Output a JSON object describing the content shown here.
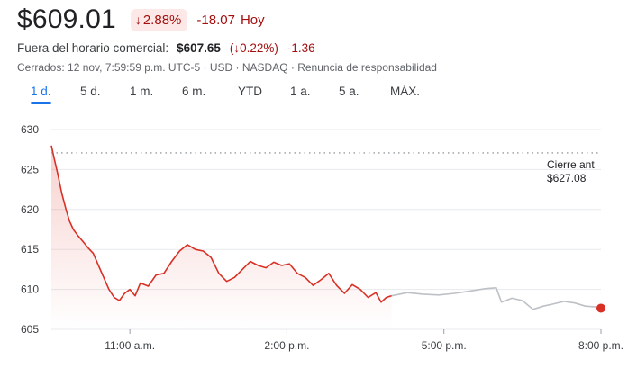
{
  "quote": {
    "price": "$609.01",
    "change_pct": "2.88%",
    "change_abs": "-18.07",
    "change_period": "Hoy",
    "down_arrow": "↓"
  },
  "after_hours": {
    "label": "Fuera del horario comercial:",
    "price": "$607.65",
    "pct": "(↓0.22%)",
    "abs": "-1.36"
  },
  "meta": "Cerrados: 12 nov, 7:59:59 p.m. UTC-5 · USD · NASDAQ · Renuncia de responsabilidad",
  "tabs": [
    {
      "label": "1 d.",
      "active": true
    },
    {
      "label": "5 d."
    },
    {
      "label": "1 m."
    },
    {
      "label": "6 m."
    },
    {
      "label": "YTD"
    },
    {
      "label": "1 a."
    },
    {
      "label": "5 a."
    },
    {
      "label": "MÁX."
    }
  ],
  "colors": {
    "down": "#d93025",
    "after_hours_line": "#bdc1c6",
    "grid": "#e8eaed",
    "active_tab": "#1a73e8"
  },
  "chart_data": {
    "type": "line",
    "y_ticks": [
      "630",
      "625",
      "620",
      "615",
      "610",
      "605"
    ],
    "x_ticks": [
      "11:00 a.m.",
      "2:00 p.m.",
      "5:00 p.m.",
      "8:00 p.m."
    ],
    "ylim": [
      605,
      630
    ],
    "xlim_hours": [
      9.5,
      20.0
    ],
    "previous_close": {
      "label": "Cierre ant",
      "value": 627.08,
      "value_text": "$627.08"
    },
    "series": [
      {
        "segment": "regular",
        "x": [
          9.5,
          9.55,
          9.62,
          9.7,
          9.78,
          9.85,
          9.92,
          10.0,
          10.1,
          10.2,
          10.3,
          10.4,
          10.5,
          10.6,
          10.7,
          10.8,
          10.9,
          11.0,
          11.1,
          11.2,
          11.35,
          11.5,
          11.65,
          11.8,
          11.95,
          12.1,
          12.25,
          12.4,
          12.55,
          12.7,
          12.85,
          13.0,
          13.15,
          13.3,
          13.45,
          13.6,
          13.75,
          13.9,
          14.05,
          14.2,
          14.35,
          14.5,
          14.65,
          14.8,
          14.95,
          15.1,
          15.25,
          15.4,
          15.55,
          15.7,
          15.8,
          15.9,
          16.0
        ],
        "y": [
          628.0,
          626.5,
          624.5,
          622.0,
          620.0,
          618.5,
          617.5,
          616.8,
          616.0,
          615.2,
          614.5,
          613.0,
          611.5,
          610.0,
          609.0,
          608.6,
          609.5,
          610.0,
          609.2,
          610.8,
          610.4,
          611.8,
          612.0,
          613.5,
          614.8,
          615.6,
          615.0,
          614.8,
          614.0,
          612.0,
          611.0,
          611.5,
          612.5,
          613.5,
          613.0,
          612.7,
          613.4,
          613.0,
          613.2,
          612.0,
          611.5,
          610.5,
          611.2,
          612.0,
          610.5,
          609.5,
          610.6,
          610.0,
          609.0,
          609.6,
          608.4,
          609.0,
          609.2
        ]
      },
      {
        "segment": "after_hours",
        "x": [
          16.0,
          16.3,
          16.6,
          16.9,
          17.2,
          17.5,
          17.8,
          18.0,
          18.1,
          18.3,
          18.5,
          18.7,
          18.9,
          19.1,
          19.3,
          19.5,
          19.7,
          19.9,
          20.0
        ],
        "y": [
          609.2,
          609.6,
          609.4,
          609.3,
          609.5,
          609.8,
          610.1,
          610.2,
          608.4,
          608.9,
          608.6,
          607.5,
          607.9,
          608.2,
          608.5,
          608.3,
          607.9,
          607.8,
          607.65
        ]
      }
    ],
    "last_point_value": 607.65
  }
}
